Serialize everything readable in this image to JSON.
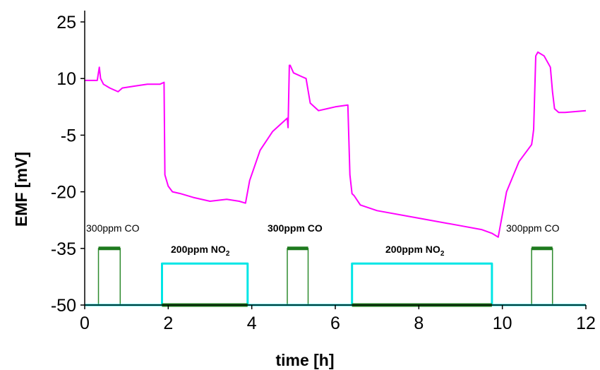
{
  "chart_data": {
    "type": "line",
    "xlabel": "time [h]",
    "ylabel": "EMF [mV]",
    "xlim": [
      0,
      12
    ],
    "ylim": [
      -50,
      28
    ],
    "x_ticks": [
      "0",
      "2",
      "4",
      "6",
      "8",
      "10",
      "12"
    ],
    "y_ticks": [
      "25",
      "10",
      "-5",
      "-20",
      "-35",
      "-50"
    ],
    "series": [
      {
        "color": "#ff00ff",
        "x": [
          0.0,
          0.3,
          0.35,
          0.38,
          0.45,
          0.6,
          0.8,
          0.9,
          1.2,
          1.5,
          1.8,
          1.9,
          1.92,
          2.0,
          2.1,
          2.3,
          2.6,
          3.0,
          3.4,
          3.7,
          3.85,
          3.95,
          4.2,
          4.5,
          4.75,
          4.85,
          4.87,
          4.9,
          4.92,
          5.0,
          5.2,
          5.3,
          5.4,
          5.6,
          5.8,
          6.0,
          6.3,
          6.35,
          6.4,
          6.45,
          6.6,
          7.0,
          8.0,
          9.0,
          9.5,
          9.75,
          9.9,
          10.1,
          10.4,
          10.7,
          10.72,
          10.75,
          10.8,
          10.85,
          11.0,
          11.15,
          11.2,
          11.25,
          11.35,
          11.5,
          12.0
        ],
        "y": [
          9.5,
          9.5,
          13.0,
          10.0,
          8.5,
          7.5,
          6.5,
          7.5,
          8.0,
          8.5,
          8.5,
          9.0,
          -15.5,
          -18.5,
          -20.0,
          -20.5,
          -21.5,
          -22.5,
          -22.0,
          -22.5,
          -23.0,
          -17.0,
          -9.0,
          -4.0,
          -1.5,
          -0.5,
          -3.0,
          13.5,
          13.5,
          11.5,
          10.5,
          10.0,
          3.5,
          1.5,
          2.0,
          2.5,
          3.0,
          -15.5,
          -20.5,
          -21.0,
          -23.5,
          -25.0,
          -27.0,
          -29.0,
          -30.0,
          -31.0,
          -32.0,
          -20.0,
          -12.0,
          -7.5,
          -6.0,
          -3.5,
          16.0,
          17.0,
          16.0,
          13.0,
          6.5,
          2.0,
          1.0,
          1.0,
          1.5
        ]
      },
      {
        "color": "#2e8b2e",
        "x": [
          0.0,
          0.33,
          0.33,
          0.85,
          0.85,
          4.85,
          4.85,
          5.35,
          5.35,
          10.7,
          10.7,
          11.2,
          11.2,
          12.0
        ],
        "y": [
          -50,
          -50,
          -35,
          -35,
          -50,
          -50,
          -35,
          -35,
          -50,
          -50,
          -35,
          -35,
          -50,
          -50
        ]
      },
      {
        "color": "#00e6e6",
        "x": [
          0.0,
          1.85,
          1.85,
          3.9,
          3.9,
          6.4,
          6.4,
          9.75,
          9.75,
          12.0
        ],
        "y": [
          -50,
          -50,
          -39,
          -39,
          -50,
          -50,
          -39,
          -39,
          -50,
          -50
        ]
      }
    ],
    "annotations": [
      {
        "text": "300ppm CO",
        "bold": false
      },
      {
        "text": "200ppm NO",
        "sub": "2",
        "bold": true
      },
      {
        "text": "300ppm CO",
        "bold": true
      },
      {
        "text": "200ppm NO",
        "sub": "2",
        "bold": true
      },
      {
        "text": "300ppm CO",
        "bold": false
      }
    ]
  }
}
